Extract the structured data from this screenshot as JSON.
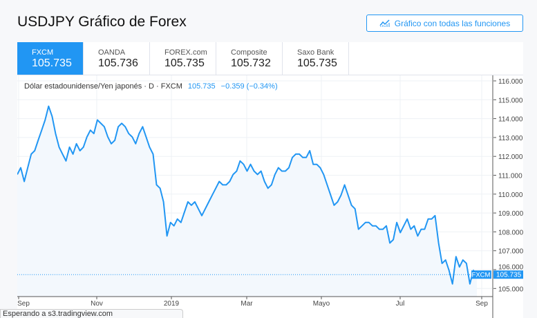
{
  "header": {
    "title": "USDJPY Gráfico de Forex",
    "full_chart_button": "Gráfico con todas las funciones"
  },
  "tabs": [
    {
      "name": "FXCM",
      "price": "105.735",
      "active": true
    },
    {
      "name": "OANDA",
      "price": "105.736"
    },
    {
      "name": "FOREX.com",
      "price": "105.735"
    },
    {
      "name": "Composite",
      "price": "105.732"
    },
    {
      "name": "Saxo Bank",
      "price": "105.735"
    }
  ],
  "legend": {
    "symbol": "Dólar estadounidense/Yen japonés · D · FXCM",
    "price": "105.735",
    "change": "−0.359 (−0.34%)"
  },
  "status": "Esperando a s3.tradingview.com",
  "colors": {
    "accent": "#2196f3"
  },
  "chart_data": {
    "type": "area",
    "title": "Dólar estadounidense/Yen japonés · D · FXCM",
    "ylim": [
      104.6,
      116.1
    ],
    "yticks": [
      "116.000",
      "115.000",
      "114.000",
      "113.000",
      "112.000",
      "111.000",
      "110.000",
      "109.000",
      "108.000",
      "107.000",
      "106.000",
      "105.000"
    ],
    "xticks": [
      "Sep",
      "Nov",
      "2019",
      "Mar",
      "Mayo",
      "Jul",
      "Sep"
    ],
    "last_label": "FXCM",
    "last_value": "105.735",
    "values": [
      111.04,
      111.4,
      110.67,
      111.4,
      112.12,
      112.3,
      112.85,
      113.39,
      113.93,
      114.66,
      114.12,
      113.21,
      112.49,
      112.12,
      111.76,
      112.49,
      112.12,
      112.67,
      112.3,
      112.49,
      113.03,
      113.39,
      113.21,
      113.93,
      113.75,
      113.57,
      113.03,
      112.67,
      112.85,
      113.57,
      113.75,
      113.57,
      113.21,
      113.03,
      112.67,
      113.21,
      113.57,
      113.03,
      112.49,
      112.12,
      110.49,
      110.31,
      109.59,
      107.78,
      108.5,
      108.32,
      108.68,
      108.5,
      109.04,
      109.59,
      109.41,
      109.59,
      109.22,
      108.86,
      109.22,
      109.59,
      109.95,
      110.31,
      110.67,
      110.49,
      110.49,
      110.67,
      111.04,
      111.22,
      111.76,
      111.58,
      111.22,
      111.58,
      111.22,
      111.04,
      111.22,
      110.67,
      110.31,
      110.49,
      111.04,
      111.4,
      111.22,
      111.22,
      111.4,
      111.94,
      112.12,
      112.12,
      111.94,
      111.94,
      112.3,
      111.58,
      111.58,
      111.4,
      111.04,
      110.49,
      109.95,
      109.41,
      109.59,
      109.95,
      110.49,
      109.95,
      109.41,
      109.22,
      108.14,
      108.32,
      108.5,
      108.5,
      108.32,
      108.32,
      108.14,
      108.14,
      108.32,
      107.41,
      107.59,
      108.5,
      107.96,
      108.32,
      108.68,
      108.14,
      108.32,
      107.78,
      108.14,
      108.14,
      108.68,
      108.68,
      108.86,
      107.41,
      106.33,
      106.51,
      105.96,
      105.24,
      106.69,
      106.14,
      106.51,
      106.33,
      105.24,
      105.96,
      105.735
    ]
  }
}
